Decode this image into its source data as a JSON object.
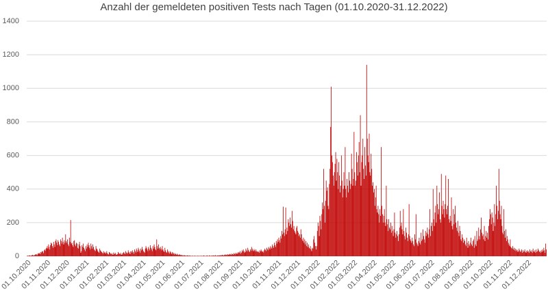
{
  "chart_data": {
    "type": "bar",
    "title": "Anzahl der gemeldeten positiven Tests nach Tagen (01.10.2020-31.12.2022)",
    "color": "#c00000",
    "ylim": [
      0,
      1400
    ],
    "yticks": [
      0,
      200,
      400,
      600,
      800,
      1000,
      1200,
      1400
    ],
    "grid": true,
    "categories": [
      "01.10.2020",
      null,
      null,
      null,
      null,
      null,
      null,
      null,
      null,
      null,
      null,
      null,
      null,
      null,
      null,
      null,
      null,
      null,
      null,
      null,
      null,
      null,
      null,
      null,
      null,
      null,
      null,
      null,
      null,
      null,
      null,
      "01.11.2020",
      null,
      null,
      null,
      null,
      null,
      null,
      null,
      null,
      null,
      null,
      null,
      null,
      null,
      null,
      null,
      null,
      null,
      null,
      null,
      null,
      null,
      null,
      null,
      null,
      null,
      null,
      null,
      null,
      null,
      "01.12.2020",
      null,
      null,
      null,
      null,
      null,
      null,
      null,
      null,
      null,
      null,
      null,
      null,
      null,
      null,
      null,
      null,
      null,
      null,
      null,
      null,
      null,
      null,
      null,
      null,
      null,
      null,
      null,
      null,
      null,
      null,
      "01.01.2021",
      null,
      null,
      null,
      null,
      null,
      null,
      null,
      null,
      null,
      null,
      null,
      null,
      null,
      null,
      null,
      null,
      null,
      null,
      null,
      null,
      null,
      null,
      null,
      null,
      null,
      null,
      null,
      null,
      null,
      null,
      "01.02.2021",
      null,
      null,
      null,
      null,
      null,
      null,
      null,
      null,
      null,
      null,
      null,
      null,
      null,
      null,
      null,
      null,
      null,
      null,
      null,
      null,
      null,
      null,
      null,
      null,
      null,
      null,
      null,
      "01.03.2021",
      null,
      null,
      null,
      null,
      null,
      null,
      null,
      null,
      null,
      null,
      null,
      null,
      null,
      null,
      null,
      null,
      null,
      null,
      null,
      null,
      null,
      null,
      null,
      null,
      null,
      null,
      null,
      null,
      null,
      null,
      "01.04.2021",
      null,
      null,
      null,
      null,
      null,
      null,
      null,
      null,
      null,
      null,
      null,
      null,
      null,
      null,
      null,
      null,
      null,
      null,
      null,
      null,
      null,
      null,
      null,
      null,
      null,
      null,
      null,
      null,
      null,
      "01.05.2021",
      null,
      null,
      null,
      null,
      null,
      null,
      null,
      null,
      null,
      null,
      null,
      null,
      null,
      null,
      null,
      null,
      null,
      null,
      null,
      null,
      null,
      null,
      null,
      null,
      null,
      null,
      null,
      null,
      null,
      null,
      "01.06.2021",
      null,
      null,
      null,
      null,
      null,
      null,
      null,
      null,
      null,
      null,
      null,
      null,
      null,
      null,
      null,
      null,
      null,
      null,
      null,
      null,
      null,
      null,
      null,
      null,
      null,
      null,
      null,
      null,
      null,
      "01.07.2021",
      null,
      null,
      null,
      null,
      null,
      null,
      null,
      null,
      null,
      null,
      null,
      null,
      null,
      null,
      null,
      null,
      null,
      null,
      null,
      null,
      null,
      null,
      null,
      null,
      null,
      null,
      null,
      null,
      null,
      null,
      "01.08.2021",
      null,
      null,
      null,
      null,
      null,
      null,
      null,
      null,
      null,
      null,
      null,
      null,
      null,
      null,
      null,
      null,
      null,
      null,
      null,
      null,
      null,
      null,
      null,
      null,
      null,
      null,
      null,
      null,
      null,
      null,
      "01.09.2021",
      null,
      null,
      null,
      null,
      null,
      null,
      null,
      null,
      null,
      null,
      null,
      null,
      null,
      null,
      null,
      null,
      null,
      null,
      null,
      null,
      null,
      null,
      null,
      null,
      null,
      null,
      null,
      null,
      null,
      "01.10.2021",
      null,
      null,
      null,
      null,
      null,
      null,
      null,
      null,
      null,
      null,
      null,
      null,
      null,
      null,
      null,
      null,
      null,
      null,
      null,
      null,
      null,
      null,
      null,
      null,
      null,
      null,
      null,
      null,
      null,
      null,
      "01.11.2021",
      null,
      null,
      null,
      null,
      null,
      null,
      null,
      null,
      null,
      null,
      null,
      null,
      null,
      null,
      null,
      null,
      null,
      null,
      null,
      null,
      null,
      null,
      null,
      null,
      null,
      null,
      null,
      null,
      null,
      "01.12.2021",
      null,
      null,
      null,
      null,
      null,
      null,
      null,
      null,
      null,
      null,
      null,
      null,
      null,
      null,
      null,
      null,
      null,
      null,
      null,
      null,
      null,
      null,
      null,
      null,
      null,
      null,
      null,
      null,
      null,
      null,
      "01.01.2022",
      null,
      null,
      null,
      null,
      null,
      null,
      null,
      null,
      null,
      null,
      null,
      null,
      null,
      null,
      null,
      null,
      null,
      null,
      null,
      null,
      null,
      null,
      null,
      null,
      null,
      null,
      null,
      null,
      null,
      null,
      "01.02.2022",
      null,
      null,
      null,
      null,
      null,
      null,
      null,
      null,
      null,
      null,
      null,
      null,
      null,
      null,
      null,
      null,
      null,
      null,
      null,
      null,
      null,
      null,
      null,
      null,
      null,
      null,
      null,
      "01.03.2022",
      null,
      null,
      null,
      null,
      null,
      null,
      null,
      null,
      null,
      null,
      null,
      null,
      null,
      null,
      null,
      null,
      null,
      null,
      null,
      null,
      null,
      null,
      null,
      null,
      null,
      null,
      null,
      null,
      null,
      null,
      "01.04.2022",
      null,
      null,
      null,
      null,
      null,
      null,
      null,
      null,
      null,
      null,
      null,
      null,
      null,
      null,
      null,
      null,
      null,
      null,
      null,
      null,
      null,
      null,
      null,
      null,
      null,
      null,
      null,
      null,
      null,
      "01.05.2022",
      null,
      null,
      null,
      null,
      null,
      null,
      null,
      null,
      null,
      null,
      null,
      null,
      null,
      null,
      null,
      null,
      null,
      null,
      null,
      null,
      null,
      null,
      null,
      null,
      null,
      null,
      null,
      null,
      null,
      null,
      "01.06.2022",
      null,
      null,
      null,
      null,
      null,
      null,
      null,
      null,
      null,
      null,
      null,
      null,
      null,
      null,
      null,
      null,
      null,
      null,
      null,
      null,
      null,
      null,
      null,
      null,
      null,
      null,
      null,
      null,
      null,
      "01.07.2022",
      null,
      null,
      null,
      null,
      null,
      null,
      null,
      null,
      null,
      null,
      null,
      null,
      null,
      null,
      null,
      null,
      null,
      null,
      null,
      null,
      null,
      null,
      null,
      null,
      null,
      null,
      null,
      null,
      null,
      null,
      "01.08.2022",
      null,
      null,
      null,
      null,
      null,
      null,
      null,
      null,
      null,
      null,
      null,
      null,
      null,
      null,
      null,
      null,
      null,
      null,
      null,
      null,
      null,
      null,
      null,
      null,
      null,
      null,
      null,
      null,
      null,
      null,
      "01.09.2022",
      null,
      null,
      null,
      null,
      null,
      null,
      null,
      null,
      null,
      null,
      null,
      null,
      null,
      null,
      null,
      null,
      null,
      null,
      null,
      null,
      null,
      null,
      null,
      null,
      null,
      null,
      null,
      null,
      null,
      "01.10.2022",
      null,
      null,
      null,
      null,
      null,
      null,
      null,
      null,
      null,
      null,
      null,
      null,
      null,
      null,
      null,
      null,
      null,
      null,
      null,
      null,
      null,
      null,
      null,
      null,
      null,
      null,
      null,
      null,
      null,
      null,
      "01.11.2022",
      null,
      null,
      null,
      null,
      null,
      null,
      null,
      null,
      null,
      null,
      null,
      null,
      null,
      null,
      null,
      null,
      null,
      null,
      null,
      null,
      null,
      null,
      null,
      null,
      null,
      null,
      null,
      null,
      null,
      "01.12.2022",
      null,
      null,
      null,
      null,
      null,
      null,
      null,
      null,
      null,
      null,
      null,
      null,
      null,
      null,
      null,
      null,
      null,
      null,
      null,
      null,
      null,
      null,
      null,
      null,
      null,
      null,
      null,
      null,
      null,
      null
    ],
    "values": [
      2,
      3,
      1,
      4,
      5,
      3,
      2,
      4,
      6,
      8,
      5,
      3,
      7,
      9,
      12,
      10,
      6,
      14,
      18,
      15,
      20,
      12,
      25,
      22,
      30,
      28,
      18,
      35,
      40,
      32,
      45,
      50,
      60,
      45,
      70,
      55,
      40,
      65,
      80,
      75,
      60,
      50,
      85,
      70,
      55,
      90,
      100,
      80,
      65,
      95,
      85,
      70,
      60,
      100,
      90,
      75,
      110,
      85,
      70,
      95,
      80,
      130,
      90,
      80,
      100,
      70,
      60,
      110,
      85,
      215,
      75,
      80,
      65,
      55,
      90,
      95,
      70,
      60,
      80,
      75,
      50,
      45,
      70,
      85,
      60,
      20,
      30,
      65,
      55,
      75,
      50,
      40,
      30,
      60,
      45,
      70,
      55,
      80,
      65,
      50,
      40,
      75,
      60,
      45,
      70,
      55,
      40,
      35,
      30,
      60,
      45,
      40,
      30,
      25,
      20,
      45,
      35,
      30,
      25,
      20,
      15,
      30,
      20,
      25,
      15,
      20,
      30,
      18,
      12,
      10,
      25,
      20,
      15,
      12,
      18,
      10,
      8,
      22,
      15,
      12,
      20,
      10,
      8,
      12,
      25,
      18,
      15,
      12,
      20,
      10,
      8,
      15,
      20,
      25,
      18,
      12,
      30,
      22,
      15,
      20,
      35,
      25,
      18,
      12,
      28,
      30,
      20,
      35,
      25,
      15,
      40,
      30,
      22,
      45,
      35,
      25,
      50,
      40,
      30,
      20,
      45,
      35,
      55,
      40,
      30,
      25,
      20,
      45,
      60,
      50,
      40,
      30,
      55,
      45,
      35,
      65,
      50,
      40,
      30,
      60,
      45,
      70,
      55,
      40,
      35,
      100,
      60,
      45,
      70,
      50,
      40,
      55,
      45,
      35,
      60,
      40,
      30,
      25,
      50,
      35,
      25,
      20,
      40,
      30,
      22,
      15,
      30,
      25,
      18,
      12,
      25,
      20,
      15,
      10,
      18,
      12,
      8,
      15,
      10,
      8,
      5,
      12,
      8,
      6,
      5,
      8,
      4,
      3,
      6,
      5,
      4,
      3,
      2,
      5,
      4,
      3,
      2,
      4,
      3,
      2,
      1,
      3,
      2,
      1,
      2,
      3,
      2,
      1,
      2,
      1,
      3,
      2,
      1,
      2,
      1,
      3,
      2,
      1,
      2,
      4,
      3,
      2,
      1,
      2,
      3,
      4,
      2,
      1,
      5,
      3,
      2,
      1,
      4,
      3,
      2,
      5,
      4,
      2,
      6,
      3,
      2,
      4,
      5,
      3,
      4,
      6,
      5,
      3,
      7,
      8,
      5,
      4,
      9,
      6,
      10,
      8,
      5,
      12,
      9,
      7,
      11,
      14,
      10,
      8,
      15,
      12,
      9,
      18,
      14,
      11,
      20,
      16,
      12,
      22,
      18,
      25,
      20,
      30,
      15,
      22,
      35,
      28,
      40,
      30,
      20,
      25,
      45,
      35,
      28,
      50,
      38,
      30,
      25,
      40,
      32,
      55,
      45,
      35,
      30,
      42,
      35,
      28,
      40,
      30,
      25,
      30,
      25,
      20,
      35,
      28,
      40,
      32,
      25,
      30,
      22,
      35,
      45,
      38,
      30,
      50,
      42,
      35,
      55,
      48,
      40,
      60,
      52,
      45,
      70,
      60,
      50,
      80,
      65,
      55,
      90,
      75,
      100,
      85,
      110,
      95,
      80,
      120,
      105,
      150,
      130,
      295,
      140,
      120,
      160,
      290,
      130,
      170,
      150,
      220,
      200,
      180,
      230,
      190,
      170,
      270,
      210,
      160,
      180,
      150,
      140,
      130,
      170,
      180,
      150,
      140,
      120,
      130,
      110,
      160,
      130,
      100,
      90,
      110,
      80,
      100,
      70,
      90,
      60,
      80,
      55,
      70,
      50,
      45,
      60,
      40,
      30,
      50,
      45,
      100,
      120,
      80,
      60,
      40,
      60,
      150,
      200,
      180,
      120,
      240,
      210,
      160,
      250,
      320,
      280,
      520,
      300,
      200,
      330,
      450,
      390,
      410,
      300,
      280,
      430,
      520,
      770,
      1010,
      600,
      560,
      480,
      420,
      500,
      550,
      620,
      450,
      580,
      500,
      400,
      560,
      480,
      380,
      420,
      600,
      450,
      350,
      400,
      500,
      420,
      650,
      400,
      350,
      460,
      420,
      380,
      500,
      450,
      400,
      430,
      610,
      520,
      420,
      460,
      740,
      500,
      420,
      450,
      620,
      560,
      480,
      600,
      680,
      500,
      840,
      420,
      560,
      600,
      700,
      520,
      460,
      650,
      540,
      480,
      1140,
      700,
      600,
      560,
      730,
      500,
      480,
      610,
      520,
      420,
      440,
      380,
      400,
      300,
      350,
      420,
      280,
      260,
      300,
      250,
      200,
      280,
      240,
      650,
      300,
      250,
      200,
      240,
      280,
      200,
      180,
      420,
      220,
      190,
      150,
      220,
      170,
      160,
      200,
      140,
      180,
      150,
      120,
      160,
      260,
      140,
      110,
      130,
      150,
      120,
      90,
      130,
      170,
      270,
      180,
      200,
      160,
      130,
      280,
      150,
      120,
      100,
      170,
      140,
      110,
      90,
      130,
      310,
      120,
      100,
      90,
      80,
      110,
      90,
      70,
      60,
      130,
      100,
      250,
      80,
      70,
      60,
      90,
      110,
      80,
      70,
      140,
      90,
      100,
      160,
      120,
      100,
      80,
      150,
      120,
      140,
      170,
      130,
      110,
      160,
      280,
      120,
      180,
      200,
      150,
      400,
      220,
      180,
      260,
      300,
      200,
      420,
      310,
      250,
      280,
      380,
      220,
      200,
      490,
      300,
      250,
      330,
      280,
      230,
      310,
      480,
      280,
      250,
      300,
      460,
      220,
      200,
      240,
      210,
      350,
      180,
      160,
      280,
      190,
      250,
      300,
      200,
      170,
      150,
      210,
      140,
      120,
      180,
      150,
      100,
      90,
      130,
      110,
      80,
      100,
      90,
      70,
      60,
      110,
      80,
      50,
      90,
      70,
      60,
      80,
      110,
      70,
      60,
      90,
      100,
      50,
      120,
      70,
      60,
      150,
      90,
      100,
      170,
      120,
      100,
      160,
      230,
      140,
      120,
      130,
      100,
      180,
      90,
      120,
      150,
      110,
      140,
      100,
      180,
      220,
      280,
      250,
      190,
      260,
      230,
      150,
      200,
      310,
      180,
      250,
      420,
      300,
      220,
      270,
      520,
      330,
      250,
      220,
      300,
      180,
      140,
      130,
      280,
      150,
      110,
      160,
      90,
      120,
      100,
      80,
      70,
      60,
      100,
      55,
      50,
      45,
      60,
      40,
      50,
      35,
      45,
      30,
      40,
      35,
      25,
      30,
      45,
      35,
      25,
      30,
      40,
      20,
      35,
      25,
      30,
      40,
      25,
      20,
      30,
      35,
      25,
      30,
      20,
      40,
      30,
      25,
      35,
      20,
      45,
      30,
      25,
      35,
      20,
      40,
      25,
      30,
      45,
      35,
      25,
      30,
      20,
      35,
      25,
      40,
      30,
      50,
      35,
      20,
      75,
      40
    ]
  }
}
